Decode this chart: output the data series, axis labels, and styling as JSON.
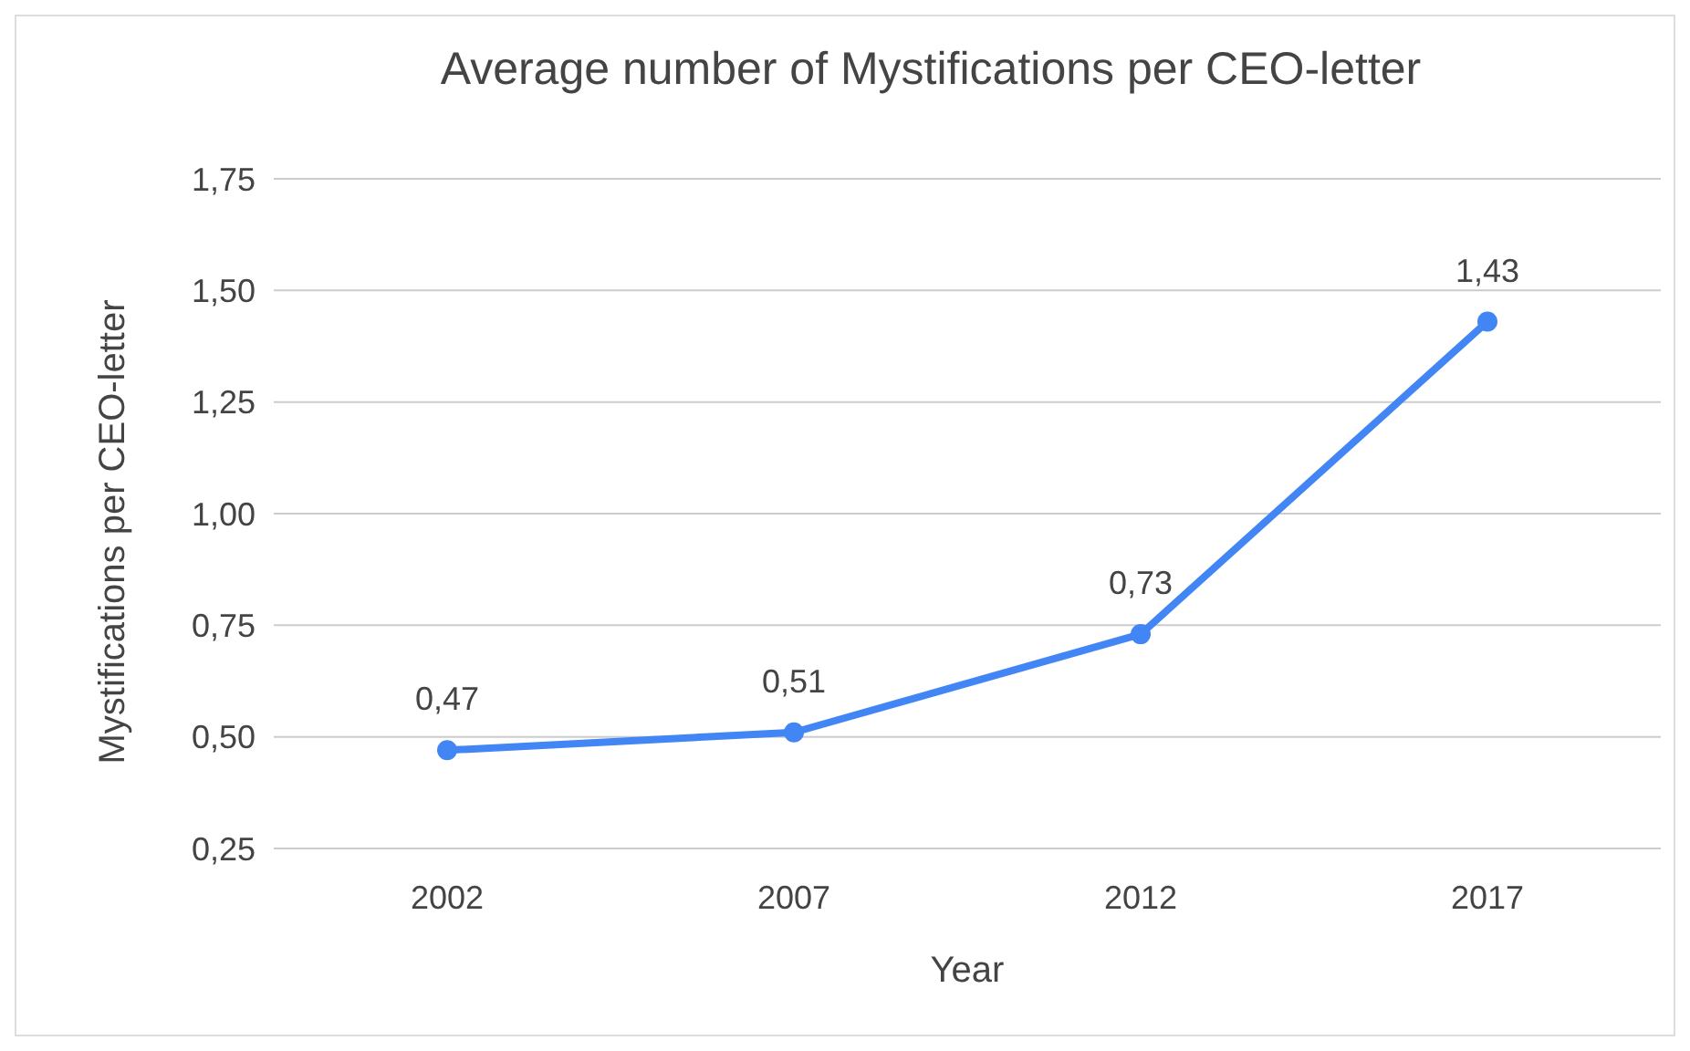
{
  "chart_data": {
    "type": "line",
    "title": "Average number of Mystifications per CEO-letter",
    "xlabel": "Year",
    "ylabel": "Mystifications per CEO-letter",
    "categories": [
      "2002",
      "2007",
      "2012",
      "2017"
    ],
    "series": [
      {
        "color": "#4285f4",
        "values": [
          0.47,
          0.51,
          0.73,
          1.43
        ],
        "value_labels": [
          "0,47",
          "0,51",
          "0,73",
          "1,43"
        ]
      }
    ],
    "ylim": [
      0.25,
      1.75
    ],
    "yticks": [
      {
        "value": 0.25,
        "label": "0,25"
      },
      {
        "value": 0.5,
        "label": "0,50"
      },
      {
        "value": 0.75,
        "label": "0,75"
      },
      {
        "value": 1,
        "label": "1,00"
      },
      {
        "value": 1.25,
        "label": "1,25"
      },
      {
        "value": 1.5,
        "label": "1,50"
      },
      {
        "value": 1.75,
        "label": "1,75"
      }
    ],
    "grid": "y",
    "marker": "circle",
    "line_style": "solid"
  }
}
